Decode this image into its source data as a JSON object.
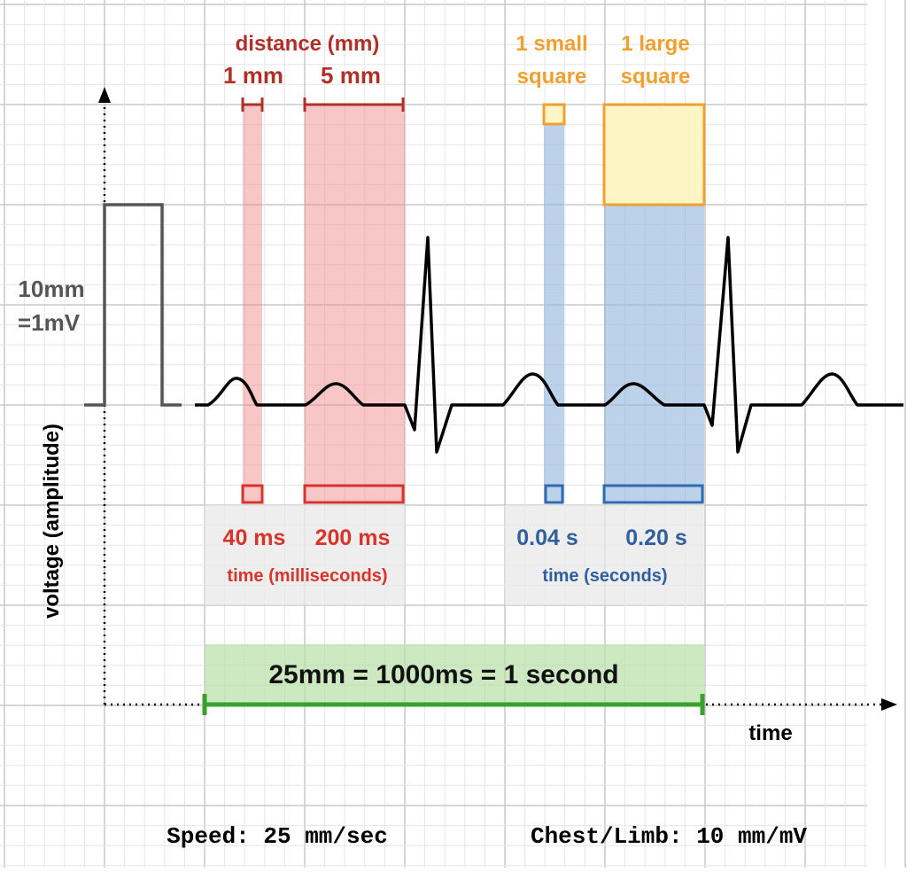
{
  "header": {
    "distance": "distance (mm)",
    "one_mm": "1 mm",
    "five_mm": "5 mm",
    "small_square": [
      "1 small",
      "square"
    ],
    "large_square": [
      "1 large",
      "square"
    ]
  },
  "calibration": [
    "10mm",
    "=1mV"
  ],
  "y_axis_label": "voltage (amplitude)",
  "ms_labels": {
    "small": "40 ms",
    "large": "200 ms",
    "unit": "time (milliseconds)"
  },
  "s_labels": {
    "small": "0.04 s",
    "large": "0.20 s",
    "unit": "time (seconds)"
  },
  "equation": "25mm = 1000ms = 1 second",
  "x_axis_label": "time",
  "footer": {
    "speed": "Speed: 25 mm/sec",
    "gain": "Chest/Limb: 10 mm/mV"
  }
}
